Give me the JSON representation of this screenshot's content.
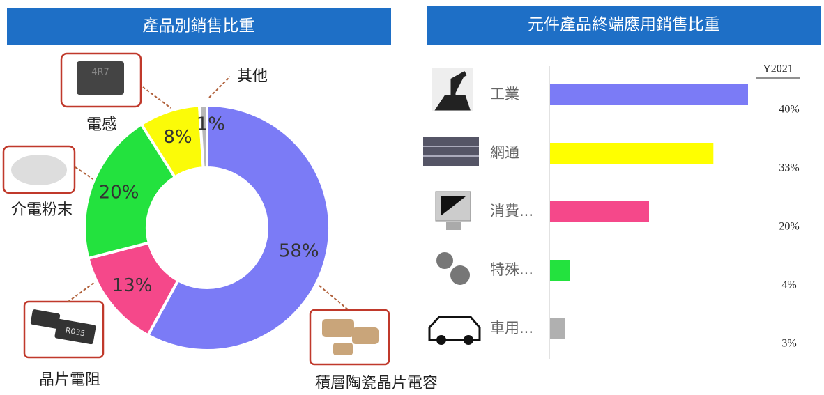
{
  "chart_data": [
    {
      "type": "donut",
      "title": "產品別銷售比重",
      "categories": [
        "積層陶瓷晶片電容",
        "晶片電阻",
        "介電粉末",
        "電感",
        "其他"
      ],
      "values": [
        58,
        13,
        20,
        8,
        1
      ],
      "value_labels": [
        "58%",
        "13%",
        "20%",
        "8%",
        "1%"
      ],
      "colors": [
        "#7b7bf6",
        "#f5488a",
        "#23e23e",
        "#fbfb08",
        "#b7b7b7"
      ]
    },
    {
      "type": "hbar",
      "title": "元件產品終端應用銷售比重",
      "series_label": "Y2021",
      "categories": [
        "工業",
        "網通",
        "消費...",
        "特殊...",
        "車用..."
      ],
      "values": [
        40,
        33,
        20,
        4,
        3
      ],
      "value_labels": [
        "40%",
        "33%",
        "20%",
        "4%",
        "3%"
      ],
      "colors": [
        "#7b7bf6",
        "#ffff00",
        "#f5488a",
        "#23e23e",
        "#b0b0b0"
      ]
    }
  ]
}
